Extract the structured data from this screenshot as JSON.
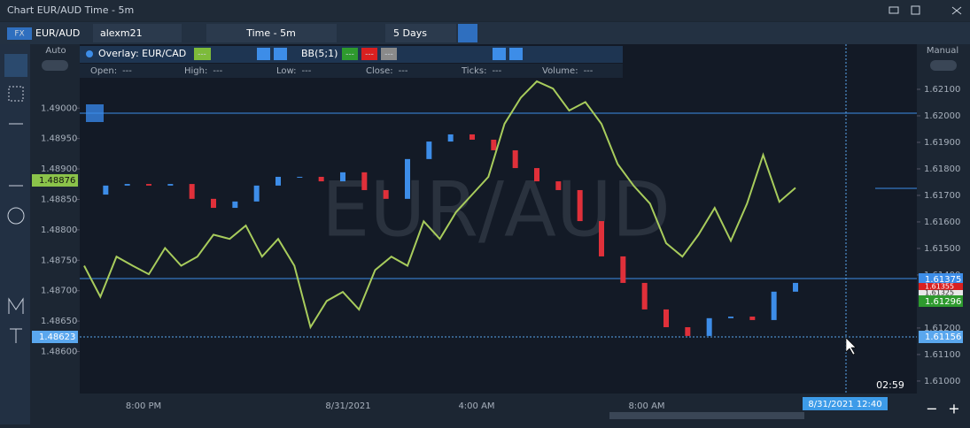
{
  "window": {
    "title": "Chart EUR/AUD Time - 5m"
  },
  "toolbar": {
    "badge": "FX",
    "symbol": "EUR/AUD",
    "user": "alexm21",
    "timeframe": "Time - 5m",
    "range": "5 Days"
  },
  "scale_modes": {
    "left": "Auto",
    "right": "Manual"
  },
  "overlay_bar": {
    "overlay": "Overlay: EUR/CAD",
    "overlay_value": "---",
    "indicator": "BB(5;1)",
    "indicator_values": [
      "---",
      "---",
      "---"
    ]
  },
  "stats": [
    {
      "label": "Open:",
      "value": "---"
    },
    {
      "label": "High:",
      "value": "---"
    },
    {
      "label": "Low:",
      "value": "---"
    },
    {
      "label": "Close:",
      "value": "---"
    },
    {
      "label": "Ticks:",
      "value": "---"
    },
    {
      "label": "Volume:",
      "value": "---"
    }
  ],
  "watermark": "EUR/AUD",
  "chart_data": {
    "type": "candlestick",
    "ylim": [
      1.48531,
      1.49105
    ],
    "yticks": [
      {
        "value": 1.49,
        "label": "1.49000"
      },
      {
        "value": 1.4895,
        "label": "1.48950"
      },
      {
        "value": 1.489,
        "label": "1.48900"
      },
      {
        "value": 1.4885,
        "label": "1.48850"
      },
      {
        "value": 1.488,
        "label": "1.48800"
      },
      {
        "value": 1.4875,
        "label": "1.48750"
      },
      {
        "value": 1.487,
        "label": "1.48700"
      },
      {
        "value": 1.4865,
        "label": "1.48650"
      },
      {
        "value": 1.486,
        "label": "1.48600"
      }
    ],
    "y2lim": [
      1.60953,
      1.6227
    ],
    "y2ticks": [
      {
        "value": 1.621,
        "label": "1.62100"
      },
      {
        "value": 1.62,
        "label": "1.62000"
      },
      {
        "value": 1.619,
        "label": "1.61900"
      },
      {
        "value": 1.618,
        "label": "1.61800"
      },
      {
        "value": 1.617,
        "label": "1.61700"
      },
      {
        "value": 1.616,
        "label": "1.61600"
      },
      {
        "value": 1.615,
        "label": "1.61500"
      },
      {
        "value": 1.614,
        "label": "1.61400"
      },
      {
        "value": 1.612,
        "label": "1.61200"
      },
      {
        "value": 1.611,
        "label": "1.61100"
      },
      {
        "value": 1.61,
        "label": "1.61000"
      }
    ],
    "x_labels": [
      "8:00 PM",
      "8/31/2021",
      "4:00 AM",
      "8:00 AM"
    ],
    "cursor_time": "8/31/2021 12:40",
    "countdown": "02:59",
    "series": [
      {
        "name": "EUR/AUD",
        "axis": "y2",
        "up_color": "#3d8de8",
        "down_color": "#e0303a",
        "values": [
          1.61703,
          1.61737,
          1.61743,
          1.61737,
          1.61743,
          1.61687,
          1.61653,
          1.61677,
          1.61737,
          1.6177,
          1.6177,
          1.61753,
          1.61787,
          1.6172,
          1.61687,
          1.61837,
          1.61903,
          1.6193,
          1.6191,
          1.6187,
          1.61803,
          1.61753,
          1.6172,
          1.61603,
          1.6147,
          1.6137,
          1.6127,
          1.61203,
          1.6117,
          1.61237,
          1.61243,
          1.6123,
          1.61337,
          1.6137
        ]
      },
      {
        "name": "EUR/CAD",
        "axis": "y",
        "color": "#a8cc5c",
        "values": [
          1.48741,
          1.4869,
          1.48756,
          1.48741,
          1.48727,
          1.4877,
          1.48741,
          1.48756,
          1.48792,
          1.48785,
          1.48807,
          1.48756,
          1.48785,
          1.48741,
          1.4864,
          1.48683,
          1.48698,
          1.48669,
          1.48734,
          1.48756,
          1.48741,
          1.48814,
          1.48785,
          1.48829,
          1.48858,
          1.48887,
          1.48974,
          1.49017,
          1.49044,
          1.49032,
          1.48996,
          1.4901,
          1.48974,
          1.48908,
          1.48872,
          1.48843,
          1.48778,
          1.48756,
          1.48792,
          1.48836,
          1.48782,
          1.48843,
          1.48923,
          1.48846,
          1.48869
        ]
      }
    ],
    "left_tags": [
      "1.48876",
      "1.48623"
    ],
    "right_tags": [
      "1.61375",
      "1.61355",
      "1.61325",
      "1.61296",
      "1.61156"
    ]
  },
  "zoom": [
    "−",
    "+"
  ]
}
